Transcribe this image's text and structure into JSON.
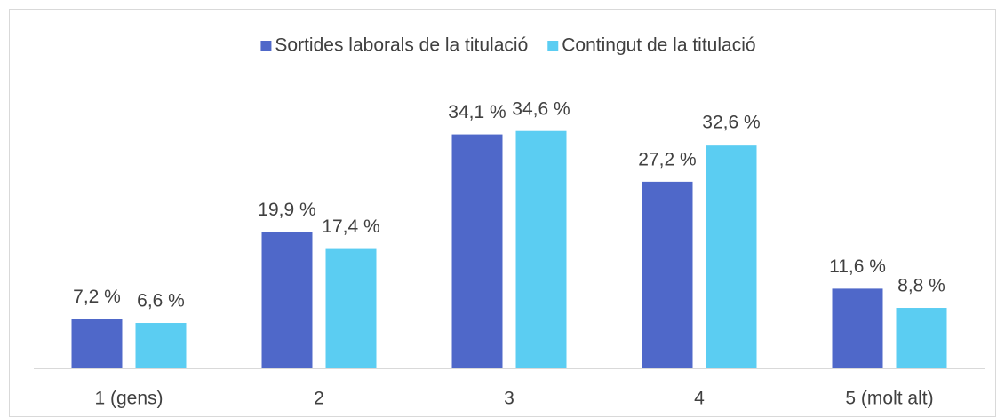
{
  "chart_data": {
    "type": "bar",
    "categories": [
      "1 (gens)",
      "2",
      "3",
      "4",
      "5 (molt alt)"
    ],
    "series": [
      {
        "name": "Sortides laborals de la titulació",
        "color": "#4f68c9",
        "values": [
          7.2,
          19.9,
          34.1,
          27.2,
          11.6
        ],
        "value_labels": [
          "7,2 %",
          "19,9 %",
          "34,1 %",
          "27,2 %",
          "11,6 %"
        ]
      },
      {
        "name": "Contingut de la titulació",
        "color": "#5bcdf2",
        "values": [
          6.6,
          17.4,
          34.6,
          32.6,
          8.8
        ],
        "value_labels": [
          "6,6 %",
          "17,4 %",
          "34,6 %",
          "32,6 %",
          "8,8 %"
        ]
      }
    ],
    "ylim": [
      0,
      40
    ],
    "legend": "top"
  }
}
